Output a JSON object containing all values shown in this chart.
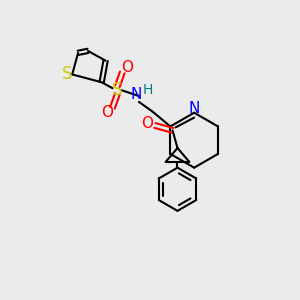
{
  "bg_color": "#ebebeb",
  "colors": {
    "S_thio": "#cccc00",
    "S_sulf": "#cccc00",
    "N": "#0000ff",
    "NH_color": "#008080",
    "O": "#ff0000",
    "C": "#000000",
    "H": "#008080"
  },
  "bond_color": "#000000",
  "lw": 1.5,
  "font_size": 10
}
